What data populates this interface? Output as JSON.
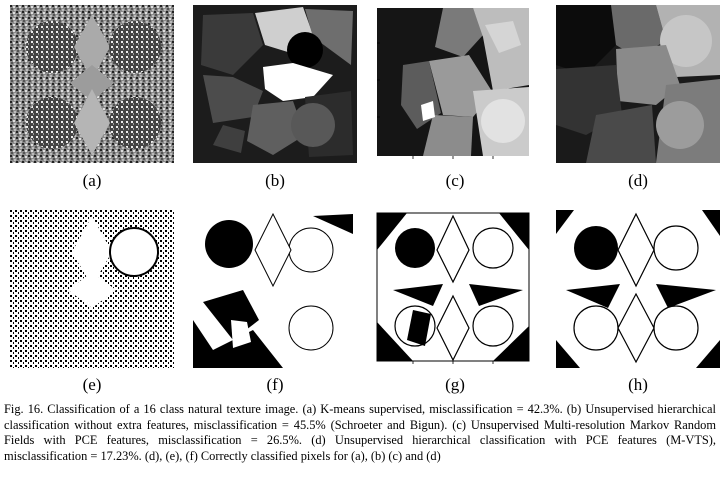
{
  "figure": {
    "panel_labels": [
      "(a)",
      "(b)",
      "(c)",
      "(d)",
      "(e)",
      "(f)",
      "(g)",
      "(h)"
    ],
    "caption": "Fig. 16.   Classification of a 16 class natural texture image. (a) K-means supervised, misclassification = 42.3%. (b) Unsupervised hierarchical classification without extra features, misclassification = 45.5% (Schroeter and Bigun). (c) Unsupervised Multi-resolution Markov Random Fields with PCE features, misclassification = 26.5%. (d) Unsupervised hierarchical classification with PCE features (M-VTS), misclassification = 17.23%. (d), (e), (f) Correctly classified pixels for (a), (b) (c) and (d)"
  }
}
